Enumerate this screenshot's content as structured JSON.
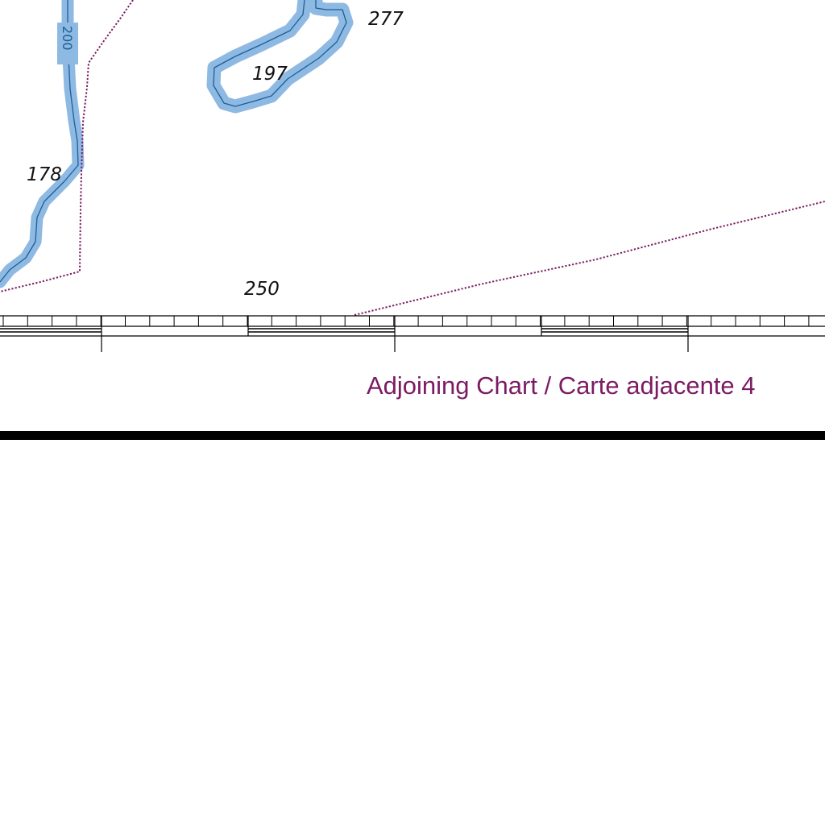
{
  "map": {
    "colors": {
      "background": "#ffffff",
      "contour_fill": "#8db9e2",
      "contour_line": "#1d5f97",
      "limit_line": "#7b1c63",
      "border_ink": "#000000",
      "adjoining_text": "#7b1c63"
    },
    "contour_label": "200",
    "soundings": [
      {
        "id": "s277",
        "value": "277"
      },
      {
        "id": "s197",
        "value": "197"
      },
      {
        "id": "s178",
        "value": "178"
      },
      {
        "id": "s250",
        "value": "250"
      }
    ],
    "adjoining_chart_label": "Adjoining Chart / Carte adjacente 4",
    "features": [
      "depth-contour-200",
      "limit-line-dotted",
      "graduated-neatline",
      "chart-frame-border"
    ]
  }
}
